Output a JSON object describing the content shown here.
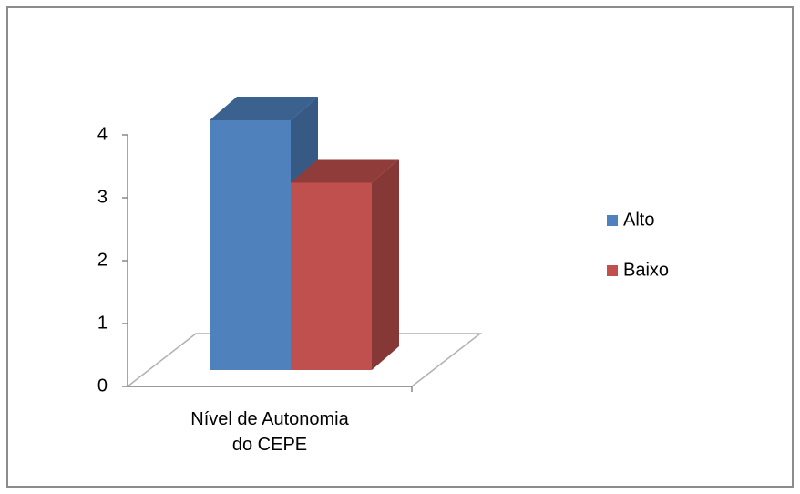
{
  "chart_data": {
    "type": "bar3d",
    "categories": [
      "Nível de Autonomia do CEPE"
    ],
    "series": [
      {
        "name": "Alto",
        "color": "#4f81bd",
        "values": [
          4
        ]
      },
      {
        "name": "Baixo",
        "color": "#c0504d",
        "values": [
          3
        ]
      }
    ],
    "ylim": [
      0,
      4
    ],
    "yticks": [
      0,
      1,
      2,
      3,
      4
    ],
    "legend": "right"
  }
}
